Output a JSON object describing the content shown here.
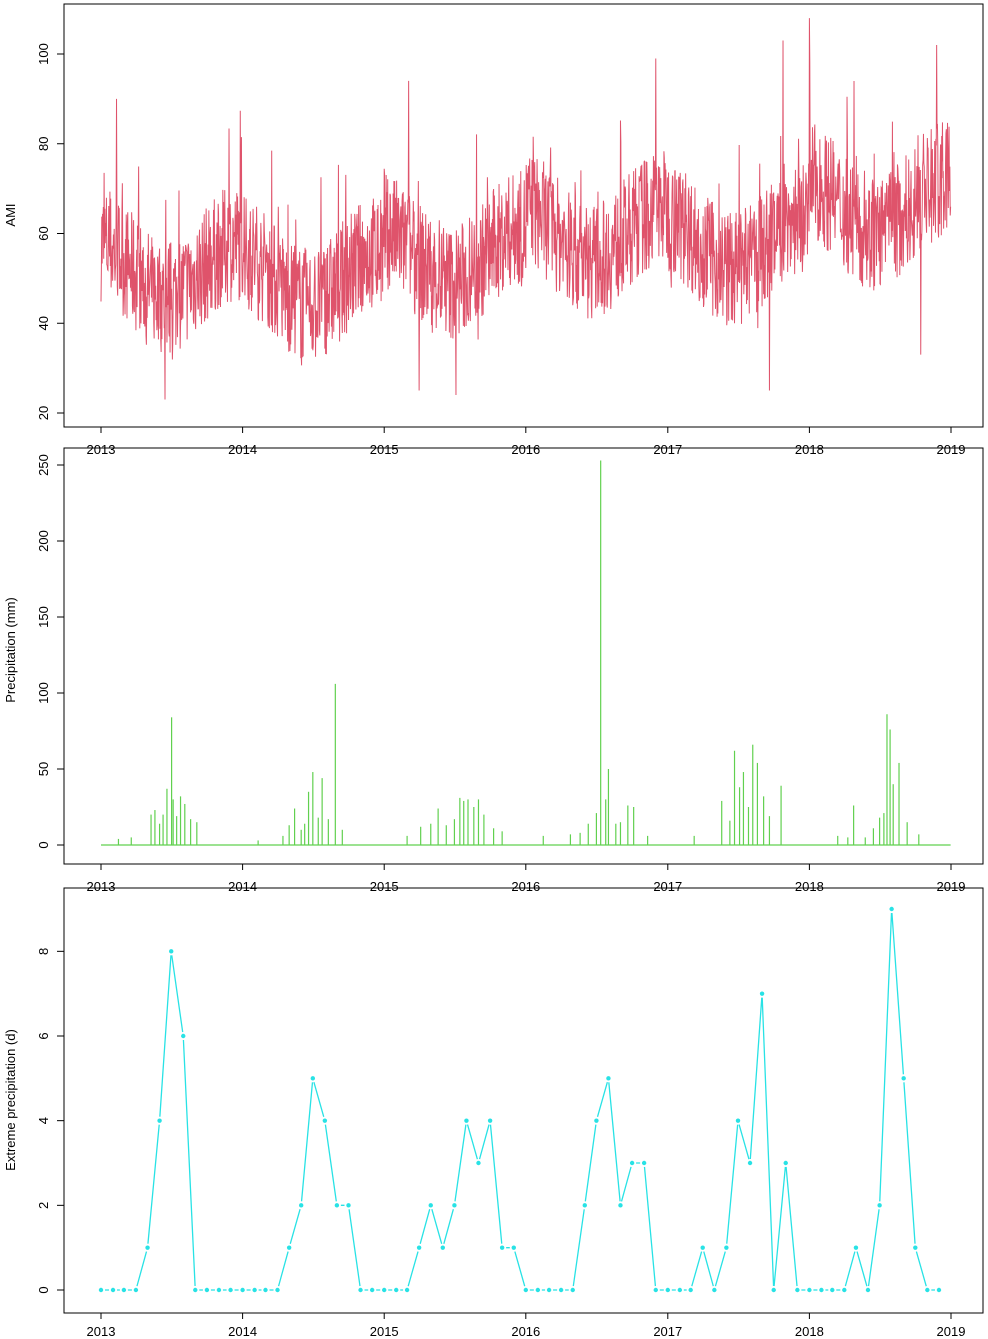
{
  "chart_data": [
    {
      "type": "line",
      "ylabel": "AMI",
      "xlabel": "",
      "title": "",
      "color": "#df536b",
      "x_ticks": [
        "2013",
        "2014",
        "2015",
        "2016",
        "2017",
        "2018",
        "2019"
      ],
      "y_ticks": [
        "20",
        "40",
        "60",
        "80",
        "100"
      ],
      "xlim": [
        "2013-01-01",
        "2019-01-01"
      ],
      "ylim": [
        20,
        105
      ],
      "frequency": "daily",
      "series": [
        {
          "x_start": "2013-01-01",
          "x_end": "2018-12-31",
          "annual_mean": [
            52,
            50,
            55,
            60,
            58,
            66
          ],
          "peaks": [
            {
              "x": "2013-02-10",
              "y": 90
            },
            {
              "x": "2013-06-15",
              "y": 23
            },
            {
              "x": "2015-03-05",
              "y": 94
            },
            {
              "x": "2015-04-01",
              "y": 25
            },
            {
              "x": "2015-07-05",
              "y": 24
            },
            {
              "x": "2016-12-01",
              "y": 99
            },
            {
              "x": "2017-09-20",
              "y": 25
            },
            {
              "x": "2017-10-25",
              "y": 103
            },
            {
              "x": "2018-01-01",
              "y": 108
            },
            {
              "x": "2018-10-15",
              "y": 33
            },
            {
              "x": "2018-11-25",
              "y": 102
            }
          ]
        }
      ]
    },
    {
      "type": "line",
      "ylabel": "Precipitation (mm)",
      "xlabel": "",
      "title": "",
      "color": "#61d04f",
      "x_ticks": [
        "2013",
        "2014",
        "2015",
        "2016",
        "2017",
        "2018",
        "2019"
      ],
      "y_ticks": [
        "0",
        "50",
        "100",
        "150",
        "200",
        "250"
      ],
      "xlim": [
        "2013-01-01",
        "2019-01-01"
      ],
      "ylim": [
        0,
        255
      ],
      "frequency": "daily",
      "series": [
        {
          "spikes": [
            {
              "x": "2013-02-15",
              "y": 4
            },
            {
              "x": "2013-03-20",
              "y": 5
            },
            {
              "x": "2013-05-10",
              "y": 20
            },
            {
              "x": "2013-05-20",
              "y": 23
            },
            {
              "x": "2013-06-01",
              "y": 14
            },
            {
              "x": "2013-06-10",
              "y": 20
            },
            {
              "x": "2013-06-20",
              "y": 37
            },
            {
              "x": "2013-07-02",
              "y": 84
            },
            {
              "x": "2013-07-06",
              "y": 30
            },
            {
              "x": "2013-07-15",
              "y": 19
            },
            {
              "x": "2013-07-25",
              "y": 32
            },
            {
              "x": "2013-08-05",
              "y": 27
            },
            {
              "x": "2013-08-20",
              "y": 17
            },
            {
              "x": "2013-09-05",
              "y": 15
            },
            {
              "x": "2014-02-10",
              "y": 3
            },
            {
              "x": "2014-04-15",
              "y": 6
            },
            {
              "x": "2014-05-01",
              "y": 13
            },
            {
              "x": "2014-05-15",
              "y": 24
            },
            {
              "x": "2014-06-01",
              "y": 10
            },
            {
              "x": "2014-06-10",
              "y": 14
            },
            {
              "x": "2014-06-20",
              "y": 35
            },
            {
              "x": "2014-07-01",
              "y": 48
            },
            {
              "x": "2014-07-15",
              "y": 18
            },
            {
              "x": "2014-07-25",
              "y": 44
            },
            {
              "x": "2014-08-10",
              "y": 17
            },
            {
              "x": "2014-08-28",
              "y": 106
            },
            {
              "x": "2014-09-15",
              "y": 10
            },
            {
              "x": "2015-03-01",
              "y": 6
            },
            {
              "x": "2015-04-05",
              "y": 12
            },
            {
              "x": "2015-05-01",
              "y": 14
            },
            {
              "x": "2015-05-20",
              "y": 24
            },
            {
              "x": "2015-06-10",
              "y": 13
            },
            {
              "x": "2015-07-01",
              "y": 17
            },
            {
              "x": "2015-07-15",
              "y": 31
            },
            {
              "x": "2015-07-25",
              "y": 29
            },
            {
              "x": "2015-08-05",
              "y": 30
            },
            {
              "x": "2015-08-20",
              "y": 25
            },
            {
              "x": "2015-09-01",
              "y": 30
            },
            {
              "x": "2015-09-15",
              "y": 20
            },
            {
              "x": "2015-10-10",
              "y": 11
            },
            {
              "x": "2015-11-01",
              "y": 9
            },
            {
              "x": "2016-02-15",
              "y": 6
            },
            {
              "x": "2016-04-25",
              "y": 7
            },
            {
              "x": "2016-05-20",
              "y": 8
            },
            {
              "x": "2016-06-10",
              "y": 14
            },
            {
              "x": "2016-07-01",
              "y": 21
            },
            {
              "x": "2016-07-12",
              "y": 253
            },
            {
              "x": "2016-07-25",
              "y": 30
            },
            {
              "x": "2016-08-01",
              "y": 50
            },
            {
              "x": "2016-08-20",
              "y": 14
            },
            {
              "x": "2016-09-01",
              "y": 15
            },
            {
              "x": "2016-09-20",
              "y": 26
            },
            {
              "x": "2016-10-05",
              "y": 25
            },
            {
              "x": "2016-11-10",
              "y": 6
            },
            {
              "x": "2017-03-10",
              "y": 6
            },
            {
              "x": "2017-05-20",
              "y": 29
            },
            {
              "x": "2017-06-10",
              "y": 16
            },
            {
              "x": "2017-06-22",
              "y": 62
            },
            {
              "x": "2017-07-05",
              "y": 38
            },
            {
              "x": "2017-07-15",
              "y": 48
            },
            {
              "x": "2017-07-28",
              "y": 25
            },
            {
              "x": "2017-08-08",
              "y": 66
            },
            {
              "x": "2017-08-20",
              "y": 54
            },
            {
              "x": "2017-09-05",
              "y": 32
            },
            {
              "x": "2017-09-20",
              "y": 19
            },
            {
              "x": "2017-10-20",
              "y": 39
            },
            {
              "x": "2018-03-15",
              "y": 6
            },
            {
              "x": "2018-04-10",
              "y": 5
            },
            {
              "x": "2018-04-25",
              "y": 26
            },
            {
              "x": "2018-05-25",
              "y": 5
            },
            {
              "x": "2018-06-15",
              "y": 11
            },
            {
              "x": "2018-07-01",
              "y": 18
            },
            {
              "x": "2018-07-12",
              "y": 21
            },
            {
              "x": "2018-07-20",
              "y": 86
            },
            {
              "x": "2018-07-28",
              "y": 76
            },
            {
              "x": "2018-08-05",
              "y": 40
            },
            {
              "x": "2018-08-20",
              "y": 54
            },
            {
              "x": "2018-09-10",
              "y": 15
            },
            {
              "x": "2018-10-10",
              "y": 7
            }
          ]
        }
      ]
    },
    {
      "type": "line",
      "ylabel": "Extreme precipitation (d)",
      "xlabel": "",
      "title": "",
      "color": "#28e2e5",
      "markers": true,
      "x_ticks": [
        "2013",
        "2014",
        "2015",
        "2016",
        "2017",
        "2018",
        "2019"
      ],
      "y_ticks": [
        "0",
        "2",
        "4",
        "6",
        "8"
      ],
      "xlim": [
        "2013-01-01",
        "2019-01-01"
      ],
      "ylim": [
        0,
        9
      ],
      "frequency": "monthly",
      "series": [
        {
          "x_start": "2013-01",
          "values": [
            0,
            0,
            0,
            0,
            1,
            4,
            8,
            6,
            0,
            0,
            0,
            0,
            0,
            0,
            0,
            0,
            1,
            2,
            5,
            4,
            2,
            2,
            0,
            0,
            0,
            0,
            0,
            1,
            2,
            1,
            2,
            4,
            3,
            4,
            1,
            1,
            0,
            0,
            0,
            0,
            0,
            2,
            4,
            5,
            2,
            3,
            3,
            0,
            0,
            0,
            0,
            1,
            0,
            1,
            4,
            3,
            7,
            0,
            3,
            0,
            0,
            0,
            0,
            0,
            1,
            0,
            2,
            9,
            5,
            1,
            0,
            0
          ]
        }
      ]
    }
  ]
}
